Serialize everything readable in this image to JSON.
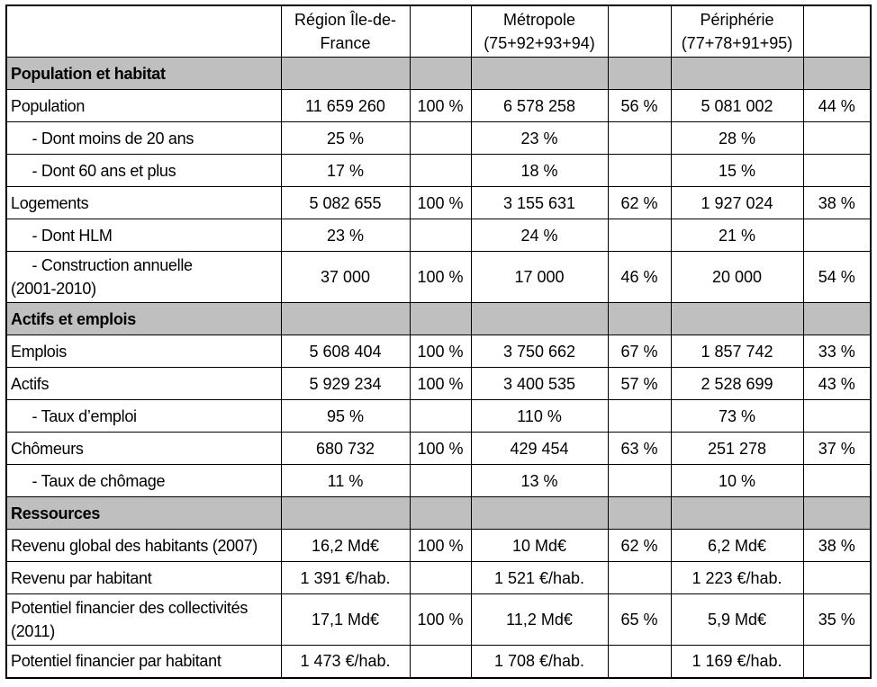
{
  "table": {
    "header": {
      "col_label": "",
      "col_region": "Région Île-de-\nFrance",
      "col_region_pct": "",
      "col_metropole": "Métropole\n(75+92+93+94)",
      "col_metropole_pct": "",
      "col_peripherie": "Périphérie\n(77+78+91+95)",
      "col_peripherie_pct": ""
    },
    "rows": [
      {
        "type": "section",
        "label": "Population et habitat"
      },
      {
        "type": "data",
        "label": "Population",
        "values": [
          "11 659 260",
          "100 %",
          "6 578 258",
          "56 %",
          "5 081 002",
          "44 %"
        ]
      },
      {
        "type": "data",
        "label": "     - Dont moins de 20 ans",
        "values": [
          "25 %",
          "",
          "23 %",
          "",
          "28 %",
          ""
        ]
      },
      {
        "type": "data",
        "label": "     - Dont 60 ans et plus",
        "values": [
          "17 %",
          "",
          "18 %",
          "",
          "15 %",
          ""
        ]
      },
      {
        "type": "data",
        "label": "Logements",
        "values": [
          "5 082 655",
          "100 %",
          "3 155 631",
          "62 %",
          "1 927 024",
          "38 %"
        ]
      },
      {
        "type": "data",
        "label": "     - Dont HLM",
        "values": [
          "23 %",
          "",
          "24 %",
          "",
          "21 %",
          ""
        ]
      },
      {
        "type": "data",
        "label": "     - Construction annuelle\n(2001-2010)",
        "values": [
          "37 000",
          "100 %",
          "17 000",
          "46 %",
          "20 000",
          "54 %"
        ]
      },
      {
        "type": "section",
        "label": "Actifs et emplois"
      },
      {
        "type": "data",
        "label": "Emplois",
        "values": [
          "5 608 404",
          "100 %",
          "3 750 662",
          "67 %",
          "1 857 742",
          "33 %"
        ]
      },
      {
        "type": "data",
        "label": "Actifs",
        "values": [
          "5 929 234",
          "100 %",
          "3 400 535",
          "57 %",
          "2 528 699",
          "43 %"
        ]
      },
      {
        "type": "data",
        "label": "     - Taux d’emploi",
        "values": [
          "95 %",
          "",
          "110 %",
          "",
          "73 %",
          ""
        ]
      },
      {
        "type": "data",
        "label": "Chômeurs",
        "values": [
          "680 732",
          "100 %",
          "429 454",
          "63 %",
          "251 278",
          "37 %"
        ]
      },
      {
        "type": "data",
        "label": "     - Taux de chômage",
        "values": [
          "11 %",
          "",
          "13 %",
          "",
          "10 %",
          ""
        ]
      },
      {
        "type": "section",
        "label": "Ressources"
      },
      {
        "type": "data",
        "label": "Revenu global des habitants (2007)",
        "values": [
          "16,2 Md€",
          "100 %",
          "10 Md€",
          "62 %",
          "6,2 Md€",
          "38 %"
        ]
      },
      {
        "type": "data",
        "label": "Revenu par habitant",
        "values": [
          "1 391 €/hab.",
          "",
          "1 521 €/hab.",
          "",
          "1 223 €/hab.",
          ""
        ]
      },
      {
        "type": "data",
        "label": "Potentiel financier des collectivités\n(2011)",
        "values": [
          "17,1 Md€",
          "100 %",
          "11,2 Md€",
          "65 %",
          "5,9 Md€",
          "35 %"
        ]
      },
      {
        "type": "data",
        "label": "Potentiel financier par habitant",
        "values": [
          "1 473 €/hab.",
          "",
          "1 708 €/hab.",
          "",
          "1 169 €/hab.",
          ""
        ]
      }
    ]
  },
  "colors": {
    "section_bg": "#bfbfbf",
    "border": "#000000",
    "background": "#ffffff",
    "text": "#000000"
  }
}
